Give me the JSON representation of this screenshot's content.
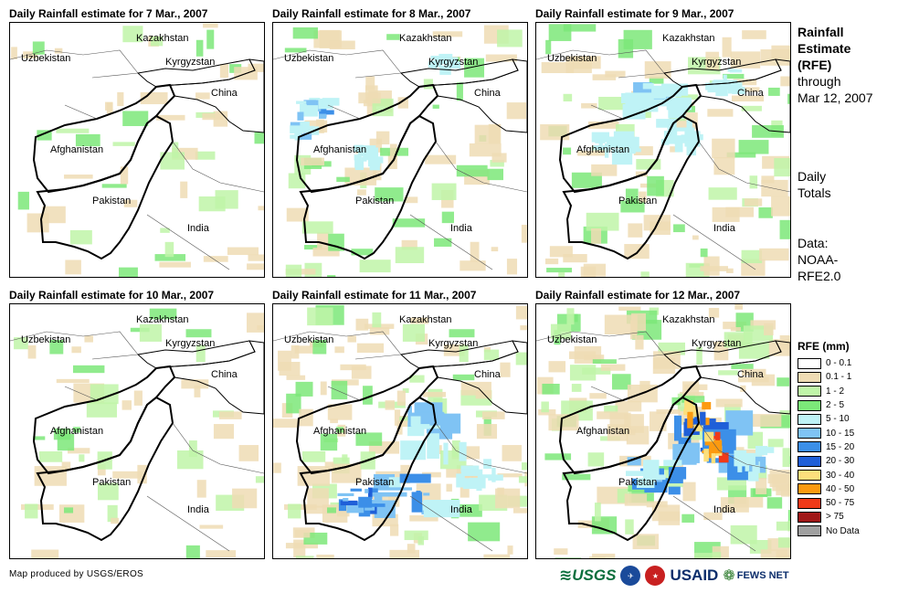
{
  "panels": [
    {
      "title": "Daily Rainfall estimate for 7 Mar., 2007",
      "intensity": 0
    },
    {
      "title": "Daily Rainfall estimate for 8 Mar., 2007",
      "intensity": 1
    },
    {
      "title": "Daily Rainfall estimate for 9 Mar., 2007",
      "intensity": 2
    },
    {
      "title": "Daily Rainfall estimate for 10 Mar., 2007",
      "intensity": 0
    },
    {
      "title": "Daily Rainfall estimate for 11 Mar., 2007",
      "intensity": 3
    },
    {
      "title": "Daily Rainfall estimate for 12 Mar., 2007",
      "intensity": 4
    }
  ],
  "labels": {
    "kazakhstan": "Kazakhstan",
    "uzbekistan": "Uzbekistan",
    "kyrgyzstan": "Kyrgyzstan",
    "china": "China",
    "afghanistan": "Afghanistan",
    "pakistan": "Pakistan",
    "india": "India"
  },
  "side": {
    "title_line1": "Rainfall",
    "title_line2": "Estimate",
    "title_line3": "(RFE)",
    "through": "through",
    "date": "Mar 12, 2007",
    "daily_line1": "Daily",
    "daily_line2": "Totals",
    "data_line1": "Data:",
    "data_line2": "NOAA-",
    "data_line3": "RFE2.0"
  },
  "legend": {
    "title": "RFE (mm)",
    "items": [
      {
        "label": "0 - 0.1",
        "color": "#ffffff"
      },
      {
        "label": "0.1 - 1",
        "color": "#efdcb4"
      },
      {
        "label": "1 - 2",
        "color": "#bff5a8"
      },
      {
        "label": "2 - 5",
        "color": "#7ce879"
      },
      {
        "label": "5 - 10",
        "color": "#bff3f6"
      },
      {
        "label": "10 - 15",
        "color": "#7fc3f4"
      },
      {
        "label": "15 - 20",
        "color": "#3c8fe8"
      },
      {
        "label": "20 - 30",
        "color": "#1f5fd8"
      },
      {
        "label": "30 - 40",
        "color": "#fcdf7c"
      },
      {
        "label": "40 - 50",
        "color": "#fc9a10"
      },
      {
        "label": "50 - 75",
        "color": "#f03a18"
      },
      {
        "label": "> 75",
        "color": "#a01818"
      },
      {
        "label": "No Data",
        "color": "#a0a0a0"
      }
    ]
  },
  "credit": "Map produced by USGS/EROS",
  "logos": {
    "usgs": "USGS",
    "usaid": "USAID",
    "fews": "FEWS NET"
  }
}
